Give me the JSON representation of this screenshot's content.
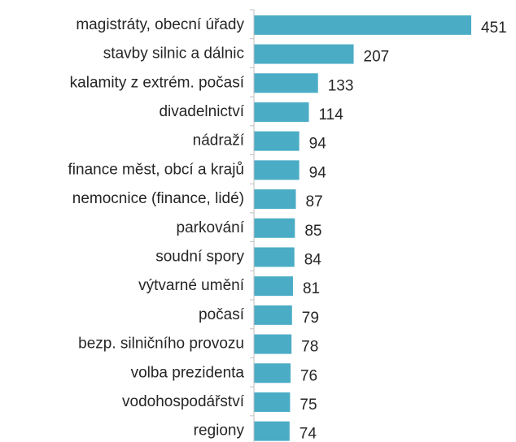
{
  "chart_data": {
    "type": "bar",
    "orientation": "horizontal",
    "categories": [
      "magistráty, obecní úřady",
      "stavby silnic a dálnic",
      "kalamity z extrém. počasí",
      "divadelnictví",
      "nádraží",
      "finance měst, obcí a krajů",
      "nemocnice (finance, lidé)",
      "parkování",
      "soudní spory",
      "výtvarné umění",
      "počasí",
      "bezp. silničního provozu",
      "volba prezidenta",
      "vodohospodářství",
      "regiony"
    ],
    "values": [
      451,
      207,
      133,
      114,
      94,
      94,
      87,
      85,
      84,
      81,
      79,
      78,
      76,
      75,
      74
    ],
    "color": "#4bacc6"
  }
}
